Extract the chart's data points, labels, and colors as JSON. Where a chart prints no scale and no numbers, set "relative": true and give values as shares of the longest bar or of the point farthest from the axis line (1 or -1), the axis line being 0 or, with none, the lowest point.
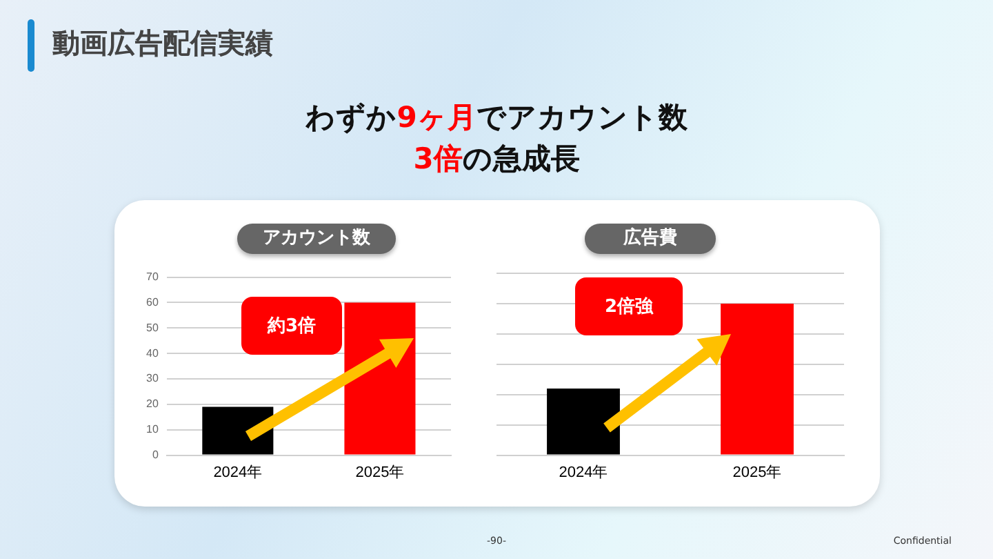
{
  "chart_data": [
    {
      "type": "bar",
      "title": "アカウント数",
      "categories": [
        "2024年",
        "2025年"
      ],
      "colors": [
        "#000000",
        "#ff0000"
      ],
      "values": [
        19,
        60
      ],
      "ylim": [
        0,
        70
      ],
      "yticks": [
        0,
        10,
        20,
        30,
        40,
        50,
        60,
        70
      ],
      "grid": "y",
      "annotations": [
        "約3倍"
      ]
    },
    {
      "type": "bar",
      "title": "広告費",
      "categories": [
        "2024年",
        "2025年"
      ],
      "colors": [
        "#000000",
        "#ff0000"
      ],
      "values": [
        0.44,
        1
      ],
      "relative": true,
      "grid": "y",
      "annotations": [
        "2倍強"
      ]
    },
    {
      "type": "other",
      "title": "動画広告配信実績",
      "subtitle": "わずか9ヶ月でアカウント数\n3倍の急成長",
      "annotations": [
        "-90-",
        "Confidential"
      ]
    }
  ]
}
